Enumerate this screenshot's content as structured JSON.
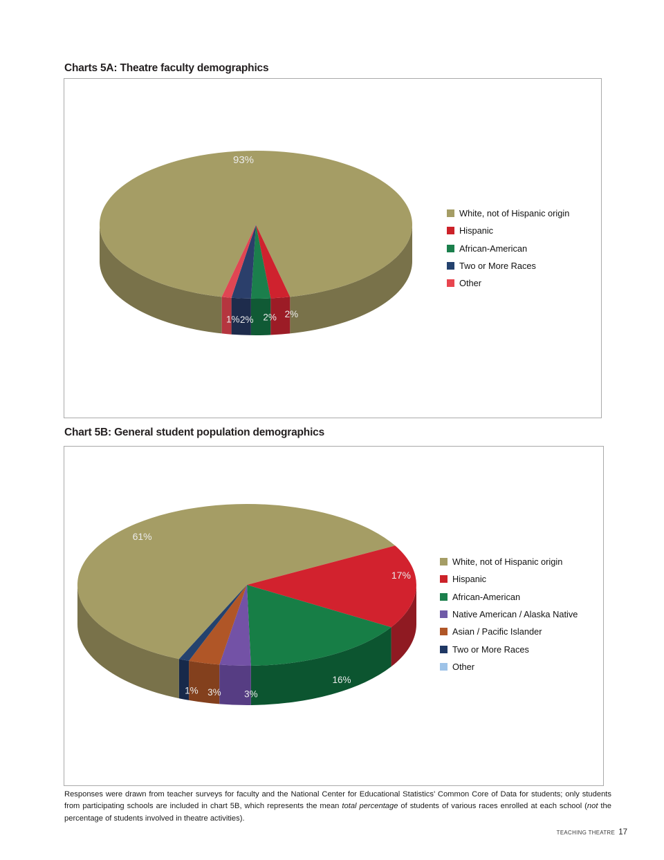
{
  "titles": {
    "chart_a": "Charts 5A: Theatre faculty demographics",
    "chart_b": "Chart 5B: General student population demographics"
  },
  "footnote": {
    "part1": "Responses were drawn from teacher surveys for faculty and the National Center for Educational Statistics’ Common Core of Data for students; only students from participating schools are included in chart 5B, which represents the mean ",
    "italic1": "total percentage",
    "part2": " of students of various races enrolled at each school (",
    "italic2": "not",
    "part3": " the percentage of students involved in theatre activities)."
  },
  "footer": {
    "label": "TEACHING THEATRE",
    "page": "17"
  },
  "chart_data": [
    {
      "type": "pie",
      "projection": "3d",
      "title": "Charts 5A: Theatre faculty demographics",
      "unit": "%",
      "legend_position": "right",
      "slices": [
        {
          "label": "White, not of Hispanic origin",
          "value": 93,
          "display": "93%",
          "color": "#a59d65",
          "side_color": "#79724a"
        },
        {
          "label": "Hispanic",
          "value": 2,
          "display": "2%",
          "color": "#cf222e",
          "side_color": "#9c1c26"
        },
        {
          "label": "African-American",
          "value": 2,
          "display": "2%",
          "color": "#1b7f4c",
          "side_color": "#105a35"
        },
        {
          "label": "Two or More Races",
          "value": 2,
          "display": "2%",
          "color": "#2b3f6b",
          "side_color": "#1e2c4c"
        },
        {
          "label": "Other",
          "value": 1,
          "display": "1%",
          "color": "#e04653",
          "side_color": "#b5363f"
        }
      ],
      "legend": [
        {
          "label": "White, not of Hispanic origin",
          "color": "#a59d65"
        },
        {
          "label": "Hispanic",
          "color": "#cc2229"
        },
        {
          "label": "African-American",
          "color": "#1b7f4c"
        },
        {
          "label": "Two or More Races",
          "color": "#24426e"
        },
        {
          "label": "Other",
          "color": "#e8454f"
        }
      ]
    },
    {
      "type": "pie",
      "projection": "3d",
      "title": "Chart 5B: General student population demographics",
      "unit": "%",
      "legend_position": "right",
      "slices": [
        {
          "label": "White, not of Hispanic origin",
          "value": 61,
          "display": "61%",
          "color": "#a59d65",
          "side_color": "#79724a"
        },
        {
          "label": "Hispanic",
          "value": 17,
          "display": "17%",
          "color": "#d2222e",
          "side_color": "#8f1a22"
        },
        {
          "label": "African-American",
          "value": 16,
          "display": "16%",
          "color": "#177e46",
          "side_color": "#0c5530"
        },
        {
          "label": "Native American / Alaska Native",
          "value": 3,
          "display": "3%",
          "color": "#7352a6",
          "side_color": "#563d83"
        },
        {
          "label": "Asian / Pacific Islander",
          "value": 3,
          "display": "3%",
          "color": "#b05627",
          "side_color": "#83401d"
        },
        {
          "label": "Two or More Races",
          "value": 1,
          "display": "1%",
          "color": "#24426e",
          "side_color": "#17294a"
        }
      ],
      "legend": [
        {
          "label": "White, not of Hispanic origin",
          "color": "#a59d65"
        },
        {
          "label": "Hispanic",
          "color": "#cc2229"
        },
        {
          "label": "African-American",
          "color": "#1b7f4c"
        },
        {
          "label": "Native American / Alaska Native",
          "color": "#6f5ba7"
        },
        {
          "label": "Asian / Pacific Islander",
          "color": "#b05627"
        },
        {
          "label": "Two or More Races",
          "color": "#1f3864"
        },
        {
          "label": "Other",
          "color": "#9ec3e8"
        }
      ]
    }
  ]
}
